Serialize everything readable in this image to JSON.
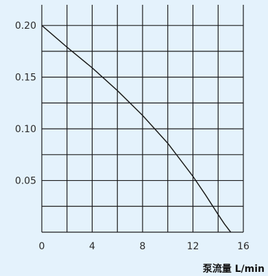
{
  "chart_data": {
    "type": "line",
    "title": "",
    "xlabel": "泵流量 L/min",
    "ylabel": "",
    "xlim": [
      0,
      16
    ],
    "ylim": [
      0,
      0.22
    ],
    "x_ticks": [
      0,
      4,
      8,
      12,
      16
    ],
    "x_tick_labels": [
      "0",
      "4",
      "8",
      "12",
      "16"
    ],
    "y_ticks": [
      0.05,
      0.1,
      0.15,
      0.2
    ],
    "y_tick_labels": [
      "0.05",
      "0.10",
      "0.15",
      "0.20"
    ],
    "x_grid": [
      0,
      2,
      4,
      6,
      8,
      10,
      12,
      14,
      16
    ],
    "y_grid": [
      0,
      0.025,
      0.05,
      0.075,
      0.1,
      0.125,
      0.15,
      0.175,
      0.2
    ],
    "grid": true,
    "legend": "none",
    "series": [
      {
        "x": [
          0,
          2,
          4,
          6,
          8,
          10,
          12,
          13,
          14,
          14.5,
          15
        ],
        "values": [
          0.2,
          0.179,
          0.159,
          0.137,
          0.113,
          0.086,
          0.054,
          0.036,
          0.017,
          0.008,
          0.0
        ]
      }
    ]
  }
}
